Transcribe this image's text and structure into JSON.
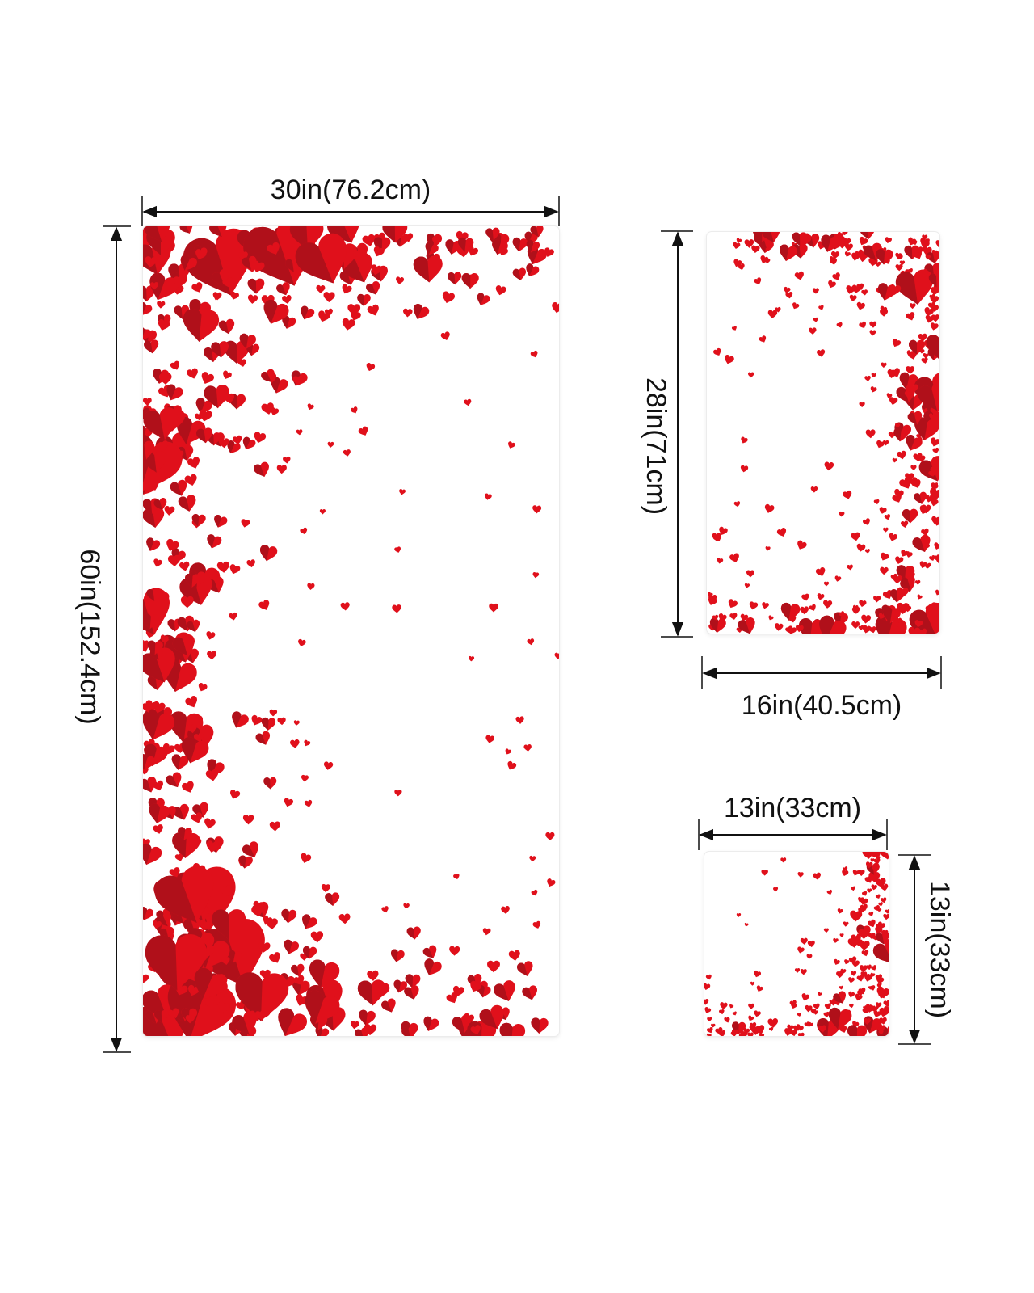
{
  "product": {
    "accent_color": "#e0101b",
    "accent_dark": "#b0101a",
    "motif_icon": "heart-icon",
    "towels": [
      {
        "name": "bath-towel",
        "width_label": "30in(76.2cm)",
        "height_label": "60in(152.4cm)"
      },
      {
        "name": "hand-towel",
        "height_label": "28in(71cm)",
        "width_label": "16in(40.5cm)"
      },
      {
        "name": "washcloth",
        "width_label": "13in(33cm)",
        "height_label": "13in(33cm)"
      }
    ]
  }
}
